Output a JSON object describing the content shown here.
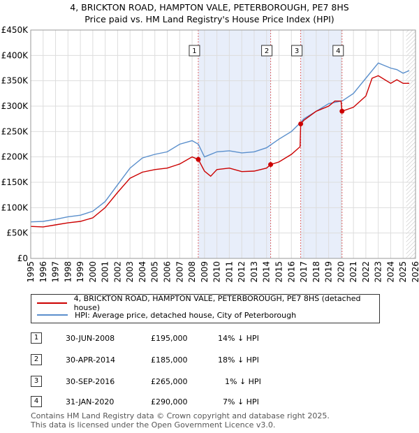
{
  "title_line1": "4, BRICKTON ROAD, HAMPTON VALE, PETERBOROUGH, PE7 8HS",
  "title_line2": "Price paid vs. HM Land Registry's House Price Index (HPI)",
  "legend": {
    "property": "4, BRICKTON ROAD, HAMPTON VALE, PETERBOROUGH, PE7 8HS (detached house)",
    "hpi": "HPI: Average price, detached house, City of Peterborough"
  },
  "colors": {
    "property": "#cc0000",
    "hpi": "#5a8fcc",
    "shade": "#e8eefa",
    "grid": "#dddddd"
  },
  "transactions": [
    {
      "num": "1",
      "date": "30-JUN-2008",
      "price": "£195,000",
      "hpi": "14% ↓ HPI"
    },
    {
      "num": "2",
      "date": "30-APR-2014",
      "price": "£185,000",
      "hpi": "18% ↓ HPI"
    },
    {
      "num": "3",
      "date": "30-SEP-2016",
      "price": "£265,000",
      "hpi": "1% ↓ HPI"
    },
    {
      "num": "4",
      "date": "31-JAN-2020",
      "price": "£290,000",
      "hpi": "7% ↓ HPI"
    }
  ],
  "footer_line1": "Contains HM Land Registry data © Crown copyright and database right 2025.",
  "footer_line2": "This data is licensed under the Open Government Licence v3.0.",
  "chart_data": {
    "type": "line",
    "xlim": [
      1995,
      2026
    ],
    "ylim": [
      0,
      450000
    ],
    "y_ticks": [
      0,
      50000,
      100000,
      150000,
      200000,
      250000,
      300000,
      350000,
      400000,
      450000
    ],
    "y_tick_labels": [
      "£0",
      "£50K",
      "£100K",
      "£150K",
      "£200K",
      "£250K",
      "£300K",
      "£350K",
      "£400K",
      "£450K"
    ],
    "x_ticks": [
      1995,
      1996,
      1997,
      1998,
      1999,
      2000,
      2001,
      2002,
      2003,
      2004,
      2005,
      2006,
      2007,
      2008,
      2009,
      2010,
      2011,
      2012,
      2013,
      2014,
      2015,
      2016,
      2017,
      2018,
      2019,
      2020,
      2021,
      2022,
      2023,
      2024,
      2025,
      2026
    ],
    "shaded_ranges": [
      [
        2008.5,
        2014.33
      ],
      [
        2016.75,
        2020.08
      ]
    ],
    "hatched_from": 2025.25,
    "sales": [
      {
        "label": "1",
        "x": 2008.5,
        "y": 195000
      },
      {
        "label": "2",
        "x": 2014.33,
        "y": 185000
      },
      {
        "label": "3",
        "x": 2016.75,
        "y": 265000
      },
      {
        "label": "4",
        "x": 2020.08,
        "y": 290000
      }
    ],
    "series": [
      {
        "name": "4, BRICKTON ROAD, HAMPTON VALE, PETERBOROUGH, PE7 8HS (detached house)",
        "x": [
          1995,
          1996,
          1997,
          1998,
          1999,
          2000,
          2001,
          2002,
          2003,
          2004,
          2005,
          2006,
          2007,
          2008,
          2008.5,
          2009,
          2009.5,
          2010,
          2011,
          2012,
          2013,
          2014,
          2014.33,
          2015,
          2016,
          2016.7,
          2016.75,
          2017,
          2018,
          2019,
          2019.5,
          2020,
          2020.08,
          2021,
          2022,
          2022.5,
          2023,
          2024,
          2024.5,
          2025,
          2025.5
        ],
        "y": [
          63000,
          62000,
          66000,
          70000,
          73000,
          80000,
          100000,
          130000,
          158000,
          170000,
          175000,
          178000,
          186000,
          200000,
          195000,
          172000,
          162000,
          175000,
          178000,
          171000,
          172000,
          178000,
          185000,
          190000,
          205000,
          220000,
          265000,
          272000,
          290000,
          300000,
          310000,
          310000,
          290000,
          298000,
          320000,
          355000,
          360000,
          345000,
          352000,
          345000,
          345000
        ]
      },
      {
        "name": "HPI: Average price, detached house, City of Peterborough",
        "x": [
          1995,
          1996,
          1997,
          1998,
          1999,
          2000,
          2001,
          2002,
          2003,
          2004,
          2005,
          2006,
          2007,
          2008,
          2008.5,
          2009,
          2010,
          2011,
          2012,
          2013,
          2014,
          2015,
          2016,
          2016.75,
          2017,
          2018,
          2019,
          2020,
          2020.08,
          2021,
          2022,
          2023,
          2023.5,
          2024,
          2024.5,
          2025,
          2025.5
        ],
        "y": [
          72000,
          73000,
          77000,
          82000,
          85000,
          93000,
          112000,
          145000,
          178000,
          198000,
          205000,
          210000,
          225000,
          232000,
          225000,
          200000,
          210000,
          212000,
          208000,
          210000,
          218000,
          235000,
          250000,
          268000,
          275000,
          290000,
          305000,
          310000,
          310000,
          325000,
          355000,
          385000,
          380000,
          375000,
          372000,
          365000,
          370000
        ]
      }
    ]
  }
}
